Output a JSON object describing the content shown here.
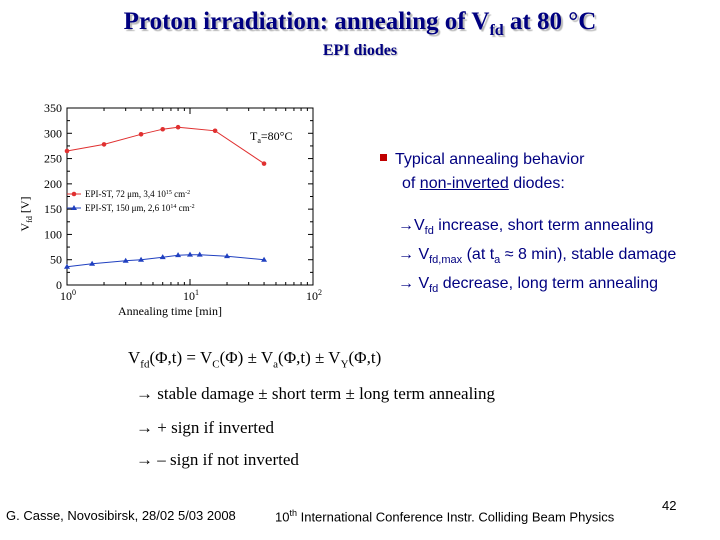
{
  "slide": {
    "title_main": "Proton irradiation: annealing of V",
    "title_sub": "fd",
    "title_tail": " at 80 °C",
    "subtitle": "EPI diodes"
  },
  "bullet": {
    "line1": "Typical annealing behavior",
    "line2_pre": "of ",
    "line2_u": "non-inverted",
    "line2_post": " diodes:"
  },
  "arrows": {
    "a1_v": "V",
    "a1_sub": "fd",
    "a1_text": " increase, short term annealing",
    "a2_v": " V",
    "a2_sub": "fd,max",
    "a2_text1": " (at t",
    "a2_sub2": "a",
    "a2_text2": " ≈ 8 min), stable damage",
    "a3_v": " V",
    "a3_sub": "fd",
    "a3_text": " decrease, long term annealing"
  },
  "formula": {
    "p1": "V",
    "s1": "fd",
    "p2": "(Φ,t) = V",
    "s2": "C",
    "p3": "(Φ) ± V",
    "s3": "a",
    "p4": "(Φ,t) ± V",
    "s4": "Y",
    "p5": "(Φ,t)"
  },
  "notes": {
    "n1": "stable damage ± short term ± long term annealing",
    "n2": "+ sign if inverted",
    "n3": "– sign if not inverted"
  },
  "footer": {
    "left": "G. Casse, Novosibirsk, 28/02 5/03 2008",
    "mid_num": "10",
    "mid_sup": "th",
    "mid_text": " International Conference Instr. Colliding Beam Physics",
    "page": "42"
  },
  "chart_data": {
    "type": "line",
    "xscale": "log",
    "xlim_log10": [
      0,
      2
    ],
    "ylim": [
      0,
      350
    ],
    "yticks": [
      0,
      50,
      100,
      150,
      200,
      250,
      300,
      350
    ],
    "ytick_labels": [
      "0",
      "50",
      "100",
      "150",
      "200",
      "250",
      "300",
      "350"
    ],
    "xtick_labels": [
      {
        "base": "10",
        "exp": "0"
      },
      {
        "base": "10",
        "exp": "1"
      },
      {
        "base": "10",
        "exp": "2"
      }
    ],
    "ylabel_main": "V",
    "ylabel_sub": "fd",
    "ylabel_unit": " [V]",
    "xlabel": "Annealing time [min]",
    "annotation_main": "T",
    "annotation_sub": "a",
    "annotation_tail": "=80°C",
    "legend": [
      {
        "pre": "EPI-ST, 72 μm, 3,4 10",
        "sup": "15",
        "post": " cm",
        "sup2": "-2"
      },
      {
        "pre": "EPI-ST, 150 μm, 2,6 10",
        "sup": "14",
        "post": " cm",
        "sup2": "-2"
      }
    ],
    "series": [
      {
        "name": "EPI-ST, 72 μm, 3,4 10^15 cm^-2",
        "color": "#e03030",
        "marker": "circle",
        "x": [
          1,
          2,
          4,
          6,
          8,
          16,
          40
        ],
        "y": [
          265,
          278,
          298,
          308,
          312,
          305,
          240
        ]
      },
      {
        "name": "EPI-ST, 150 μm, 2,6 10^14 cm^-2",
        "color": "#2040c0",
        "marker": "triangle",
        "x": [
          1,
          1.6,
          3,
          4,
          6,
          8,
          10,
          12,
          20,
          40
        ],
        "y": [
          36,
          42,
          48,
          50,
          55,
          59,
          60,
          60,
          57,
          50
        ]
      }
    ]
  }
}
